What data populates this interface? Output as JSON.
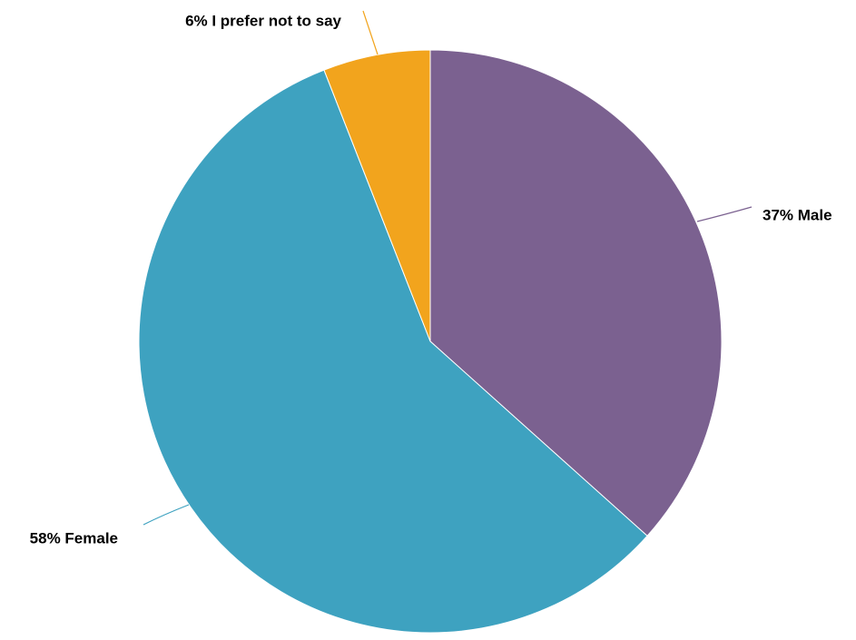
{
  "chart_data": {
    "type": "pie",
    "title": "",
    "slices": [
      {
        "name": "Male",
        "value": 37,
        "label": "37% Male",
        "color": "#7b6190"
      },
      {
        "name": "Female",
        "value": 58,
        "label": "58% Female",
        "color": "#3ea2c0"
      },
      {
        "name": "I prefer not to say",
        "value": 6,
        "label": "6% I prefer not to say",
        "color": "#f2a41d"
      }
    ],
    "start_angle_deg": 0,
    "direction": "clockwise",
    "legend": "none",
    "labels": "outside-with-leader-lines"
  }
}
